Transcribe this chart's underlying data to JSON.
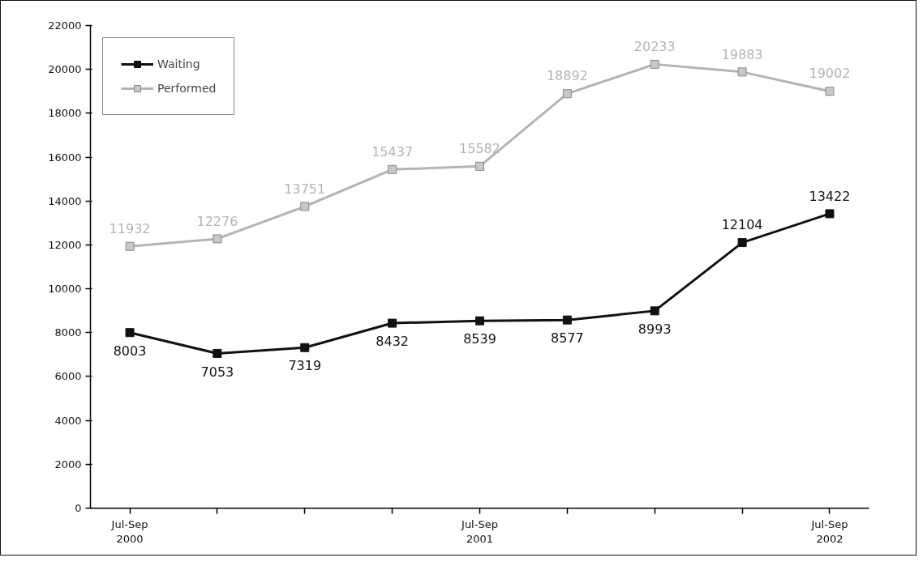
{
  "chart_data": {
    "type": "line",
    "categories": [
      "Jul-Sep\n2000",
      null,
      null,
      null,
      "Jul-Sep\n2001",
      null,
      null,
      null,
      "Jul-Sep\n2002"
    ],
    "series": [
      {
        "name": "Waiting",
        "color": "#111111",
        "values": [
          8003,
          7053,
          7319,
          8432,
          8539,
          8577,
          8993,
          12104,
          13422
        ]
      },
      {
        "name": "Performed",
        "color": "#b4b4b4",
        "values": [
          11932,
          12276,
          13751,
          15437,
          15582,
          18892,
          20233,
          19883,
          19002
        ]
      }
    ],
    "ylim": [
      0,
      22000
    ],
    "yticks": [
      0,
      2000,
      4000,
      6000,
      8000,
      10000,
      12000,
      14000,
      16000,
      18000,
      20000,
      22000
    ],
    "grid": false,
    "legend": "top left",
    "marker": "square",
    "line_style": "solid",
    "data_labels": true
  }
}
